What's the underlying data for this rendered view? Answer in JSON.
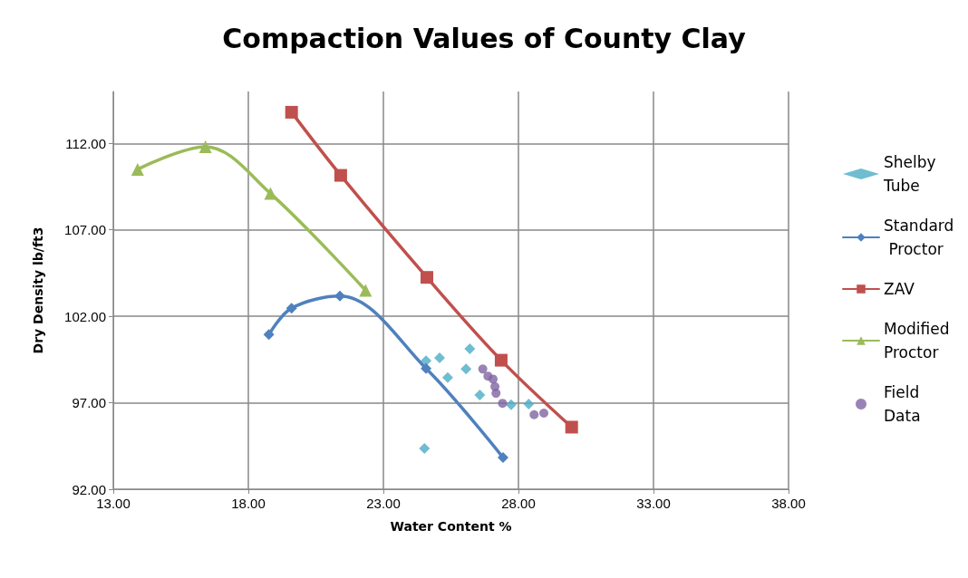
{
  "chart_data": {
    "type": "scatter",
    "title": "Compaction Values of County Clay",
    "xlabel": "Water Content %",
    "ylabel": "Dry Density lb/ft3",
    "xlim": [
      13,
      38
    ],
    "xticks": [
      {
        "value": 13,
        "label": "13.00"
      },
      {
        "value": 18,
        "label": "18.00"
      },
      {
        "value": 23,
        "label": "23.00"
      },
      {
        "value": 28,
        "label": "28.00"
      },
      {
        "value": 33,
        "label": "33.00"
      },
      {
        "value": 38,
        "label": "38.00"
      }
    ],
    "ylim": [
      92,
      115
    ],
    "yticks": [
      {
        "value": 92,
        "label": "92.00"
      },
      {
        "value": 97,
        "label": "97.00"
      },
      {
        "value": 102,
        "label": "102.00"
      },
      {
        "value": 107,
        "label": "107.00"
      },
      {
        "value": 112,
        "label": "112.00"
      }
    ],
    "grid": true,
    "legend": "right",
    "line_style": "solid",
    "series": [
      {
        "name": "Shelby Tube",
        "marker": "diamond",
        "color": "#4bacc6",
        "x": [
          24.58,
          25.08,
          26.2,
          26.06,
          25.38,
          26.57,
          27.73,
          28.38,
          24.52
        ],
        "values": [
          99.42,
          99.6,
          100.12,
          98.95,
          98.46,
          97.45,
          96.89,
          96.92,
          94.36
        ]
      },
      {
        "name": "Standard Proctor",
        "type": "line",
        "marker": "diamond",
        "color": "#4f81bd",
        "x": [
          18.76,
          19.6,
          21.39,
          24.58,
          27.43
        ],
        "values": [
          100.94,
          102.47,
          103.17,
          98.98,
          93.83
        ]
      },
      {
        "name": "ZAV",
        "type": "line",
        "marker": "square",
        "color": "#c0504d",
        "x": [
          19.6,
          21.42,
          24.61,
          27.36,
          29.97
        ],
        "values": [
          113.8,
          110.15,
          104.25,
          99.46,
          95.59
        ]
      },
      {
        "name": "Modified Proctor",
        "type": "line",
        "marker": "triangle",
        "color": "#9bbb59",
        "x": [
          13.9,
          16.41,
          18.82,
          22.34
        ],
        "values": [
          110.5,
          111.8,
          109.1,
          103.5
        ]
      },
      {
        "name": "Field Data",
        "marker": "circle",
        "color": "#8064a2",
        "x": [
          26.68,
          26.87,
          27.06,
          27.13,
          27.17,
          27.41,
          28.58,
          28.94
        ],
        "values": [
          98.95,
          98.54,
          98.37,
          97.93,
          97.55,
          96.97,
          96.31,
          96.4
        ]
      }
    ]
  }
}
